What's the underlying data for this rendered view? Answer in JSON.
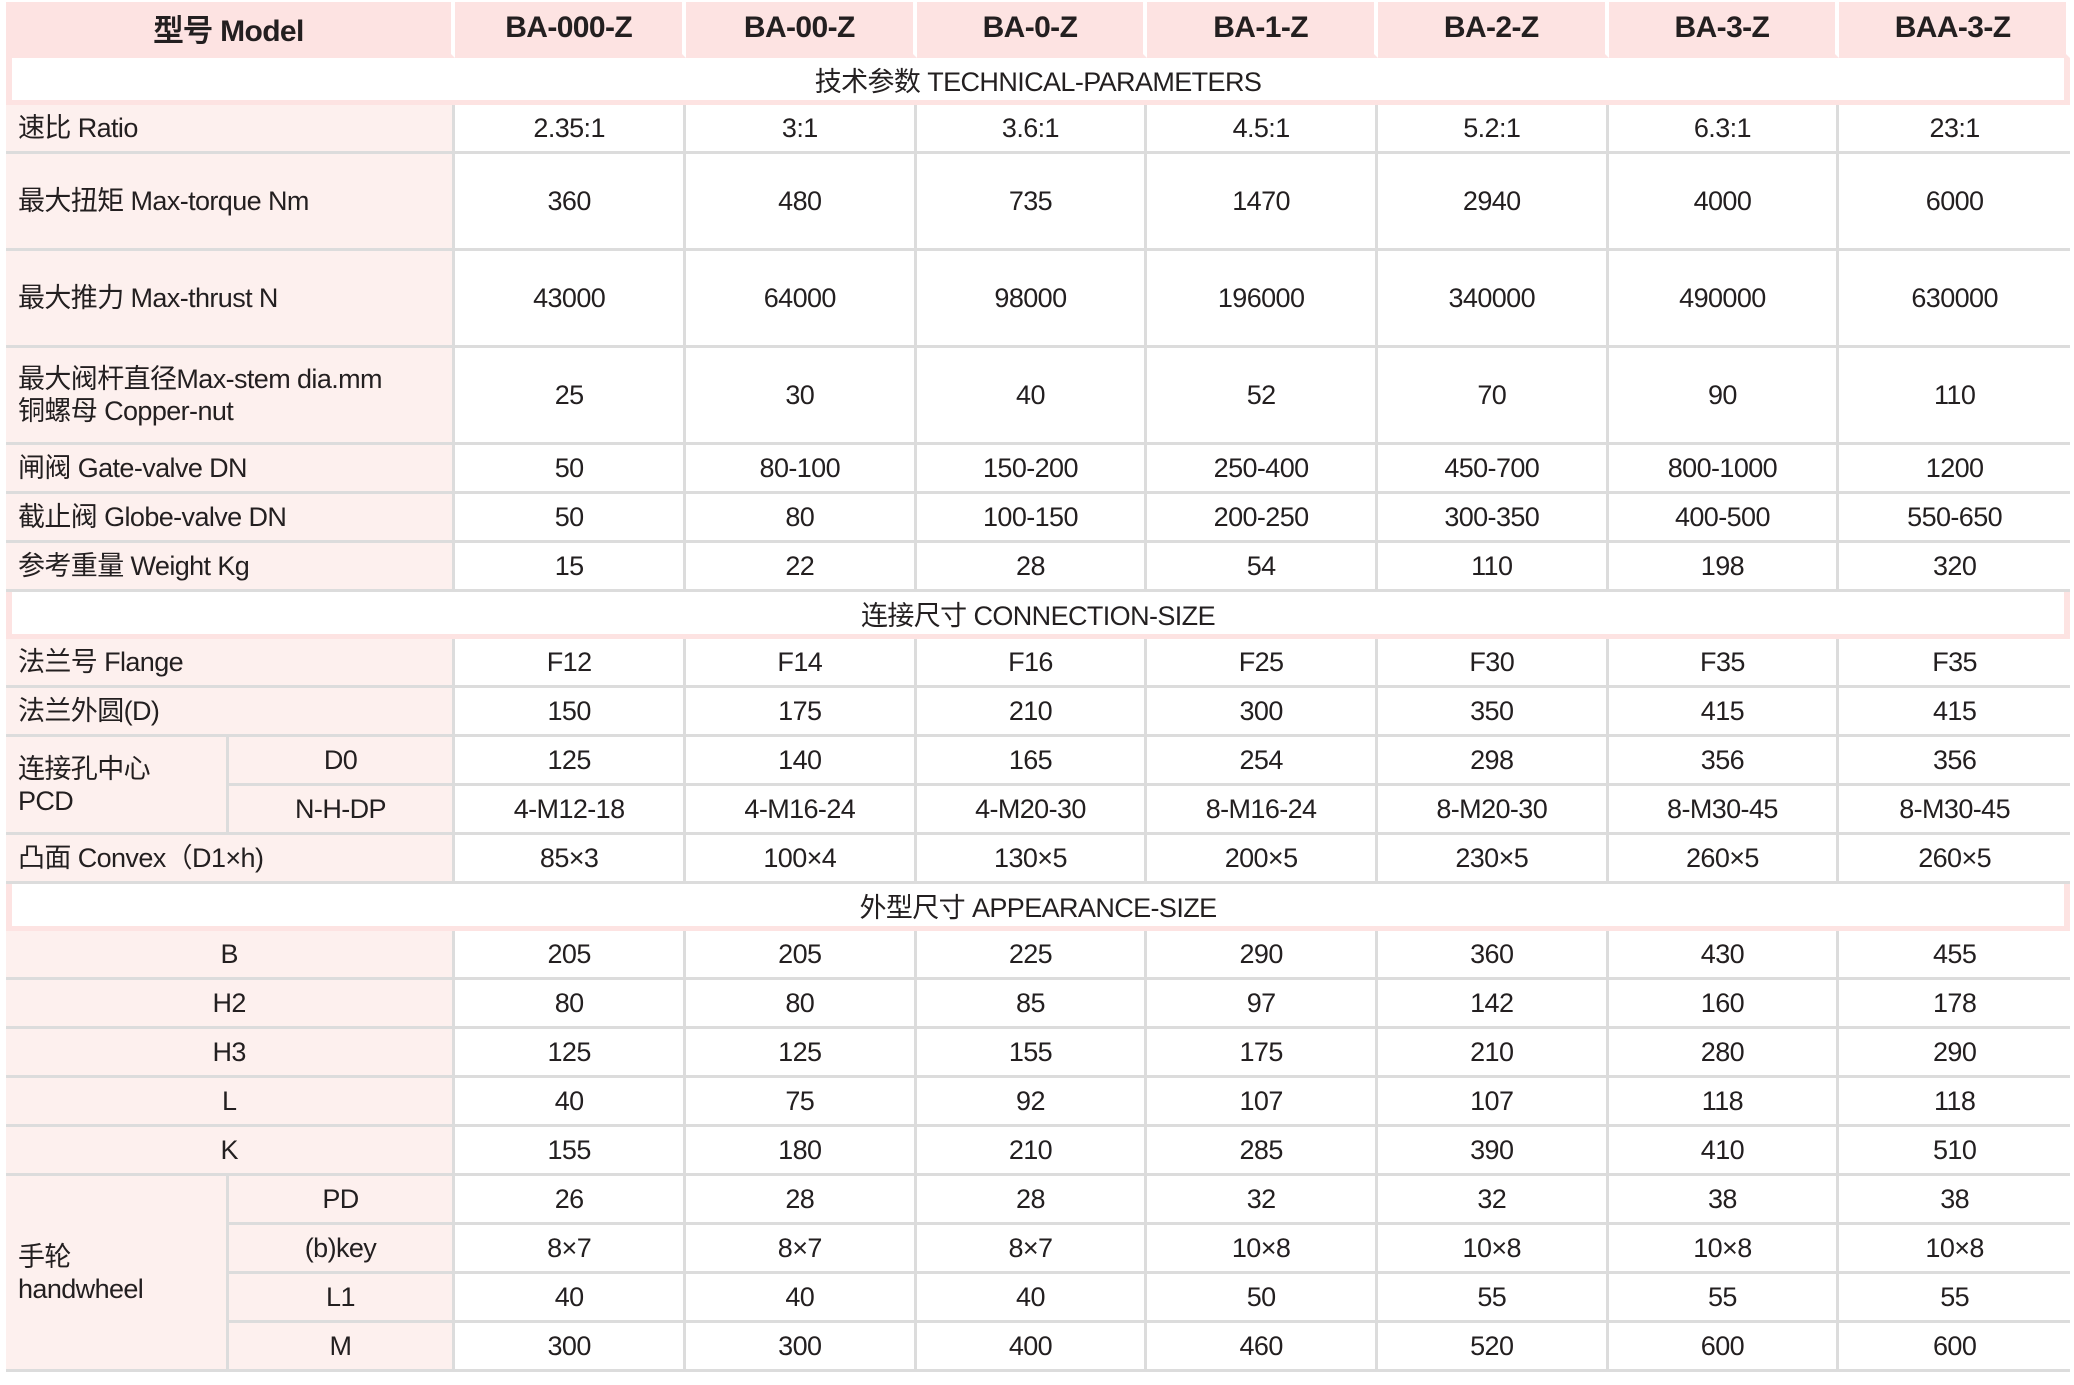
{
  "header": {
    "label": "型号 Model",
    "models": [
      "BA-000-Z",
      "BA-00-Z",
      "BA-0-Z",
      "BA-1-Z",
      "BA-2-Z",
      "BA-3-Z",
      "BAA-3-Z"
    ]
  },
  "sections": [
    {
      "title": "技术参数 TECHNICAL-PARAMETERS",
      "rows": [
        {
          "label_lines": [
            "速比 Ratio"
          ],
          "values": [
            "2.35:1",
            "3:1",
            "3.6:1",
            "4.5:1",
            "5.2:1",
            "6.3:1",
            "23:1"
          ]
        },
        {
          "label_lines": [
            "最大扭矩 Max-torque Nm"
          ],
          "tall": true,
          "values": [
            "360",
            "480",
            "735",
            "1470",
            "2940",
            "4000",
            "6000"
          ]
        },
        {
          "label_lines": [
            "最大推力 Max-thrust N"
          ],
          "tall": true,
          "values": [
            "43000",
            "64000",
            "98000",
            "196000",
            "340000",
            "490000",
            "630000"
          ]
        },
        {
          "label_lines": [
            "最大阀杆直径Max-stem dia.mm",
            "铜螺母 Copper-nut"
          ],
          "tall": true,
          "values": [
            "25",
            "30",
            "40",
            "52",
            "70",
            "90",
            "110"
          ]
        },
        {
          "label_lines": [
            "闸阀 Gate-valve DN"
          ],
          "values": [
            "50",
            "80-100",
            "150-200",
            "250-400",
            "450-700",
            "800-1000",
            "1200"
          ]
        },
        {
          "label_lines": [
            "截止阀 Globe-valve DN"
          ],
          "values": [
            "50",
            "80",
            "100-150",
            "200-250",
            "300-350",
            "400-500",
            "550-650"
          ]
        },
        {
          "label_lines": [
            "参考重量 Weight Kg"
          ],
          "values": [
            "15",
            "22",
            "28",
            "54",
            "110",
            "198",
            "320"
          ]
        }
      ]
    },
    {
      "title": "连接尺寸 CONNECTION-SIZE",
      "rows": [
        {
          "label_lines": [
            "法兰号 Flange"
          ],
          "values": [
            "F12",
            "F14",
            "F16",
            "F25",
            "F30",
            "F35",
            "F35"
          ]
        },
        {
          "label_lines": [
            "法兰外圆(D)"
          ],
          "values": [
            "150",
            "175",
            "210",
            "300",
            "350",
            "415",
            "415"
          ]
        },
        {
          "label_lines": [
            "连接孔中心",
            "PCD"
          ],
          "subrows": [
            {
              "label": "D0",
              "values": [
                "125",
                "140",
                "165",
                "254",
                "298",
                "356",
                "356"
              ]
            },
            {
              "label": "N-H-DP",
              "values": [
                "4-M12-18",
                "4-M16-24",
                "4-M20-30",
                "8-M16-24",
                "8-M20-30",
                "8-M30-45",
                "8-M30-45"
              ]
            }
          ]
        },
        {
          "label_lines": [
            "凸面 Convex（D1×h)"
          ],
          "values": [
            "85×3",
            "100×4",
            "130×5",
            "200×5",
            "230×5",
            "260×5",
            "260×5"
          ]
        }
      ]
    },
    {
      "title": "外型尺寸 APPEARANCE-SIZE",
      "rows": [
        {
          "label_lines": [
            "B"
          ],
          "center": true,
          "values": [
            "205",
            "205",
            "225",
            "290",
            "360",
            "430",
            "455"
          ]
        },
        {
          "label_lines": [
            "H2"
          ],
          "center": true,
          "values": [
            "80",
            "80",
            "85",
            "97",
            "142",
            "160",
            "178"
          ]
        },
        {
          "label_lines": [
            "H3"
          ],
          "center": true,
          "values": [
            "125",
            "125",
            "155",
            "175",
            "210",
            "280",
            "290"
          ]
        },
        {
          "label_lines": [
            "L"
          ],
          "center": true,
          "values": [
            "40",
            "75",
            "92",
            "107",
            "107",
            "118",
            "118"
          ]
        },
        {
          "label_lines": [
            "K"
          ],
          "center": true,
          "values": [
            "155",
            "180",
            "210",
            "285",
            "390",
            "410",
            "510"
          ]
        },
        {
          "label_lines": [
            "手轮",
            "handwheel"
          ],
          "subrows": [
            {
              "label": "PD",
              "values": [
                "26",
                "28",
                "28",
                "32",
                "32",
                "38",
                "38"
              ]
            },
            {
              "label": "(b)key",
              "values": [
                "8×7",
                "8×7",
                "8×7",
                "10×8",
                "10×8",
                "10×8",
                "10×8"
              ]
            },
            {
              "label": "L1",
              "values": [
                "40",
                "40",
                "40",
                "50",
                "55",
                "55",
                "55"
              ]
            },
            {
              "label": "M",
              "values": [
                "300",
                "300",
                "400",
                "460",
                "520",
                "600",
                "600"
              ]
            }
          ]
        }
      ]
    }
  ],
  "colors": {
    "header_bg": "#fde3e2",
    "label_bg": "#fdf0ee",
    "grid": "#dcdcdc"
  }
}
